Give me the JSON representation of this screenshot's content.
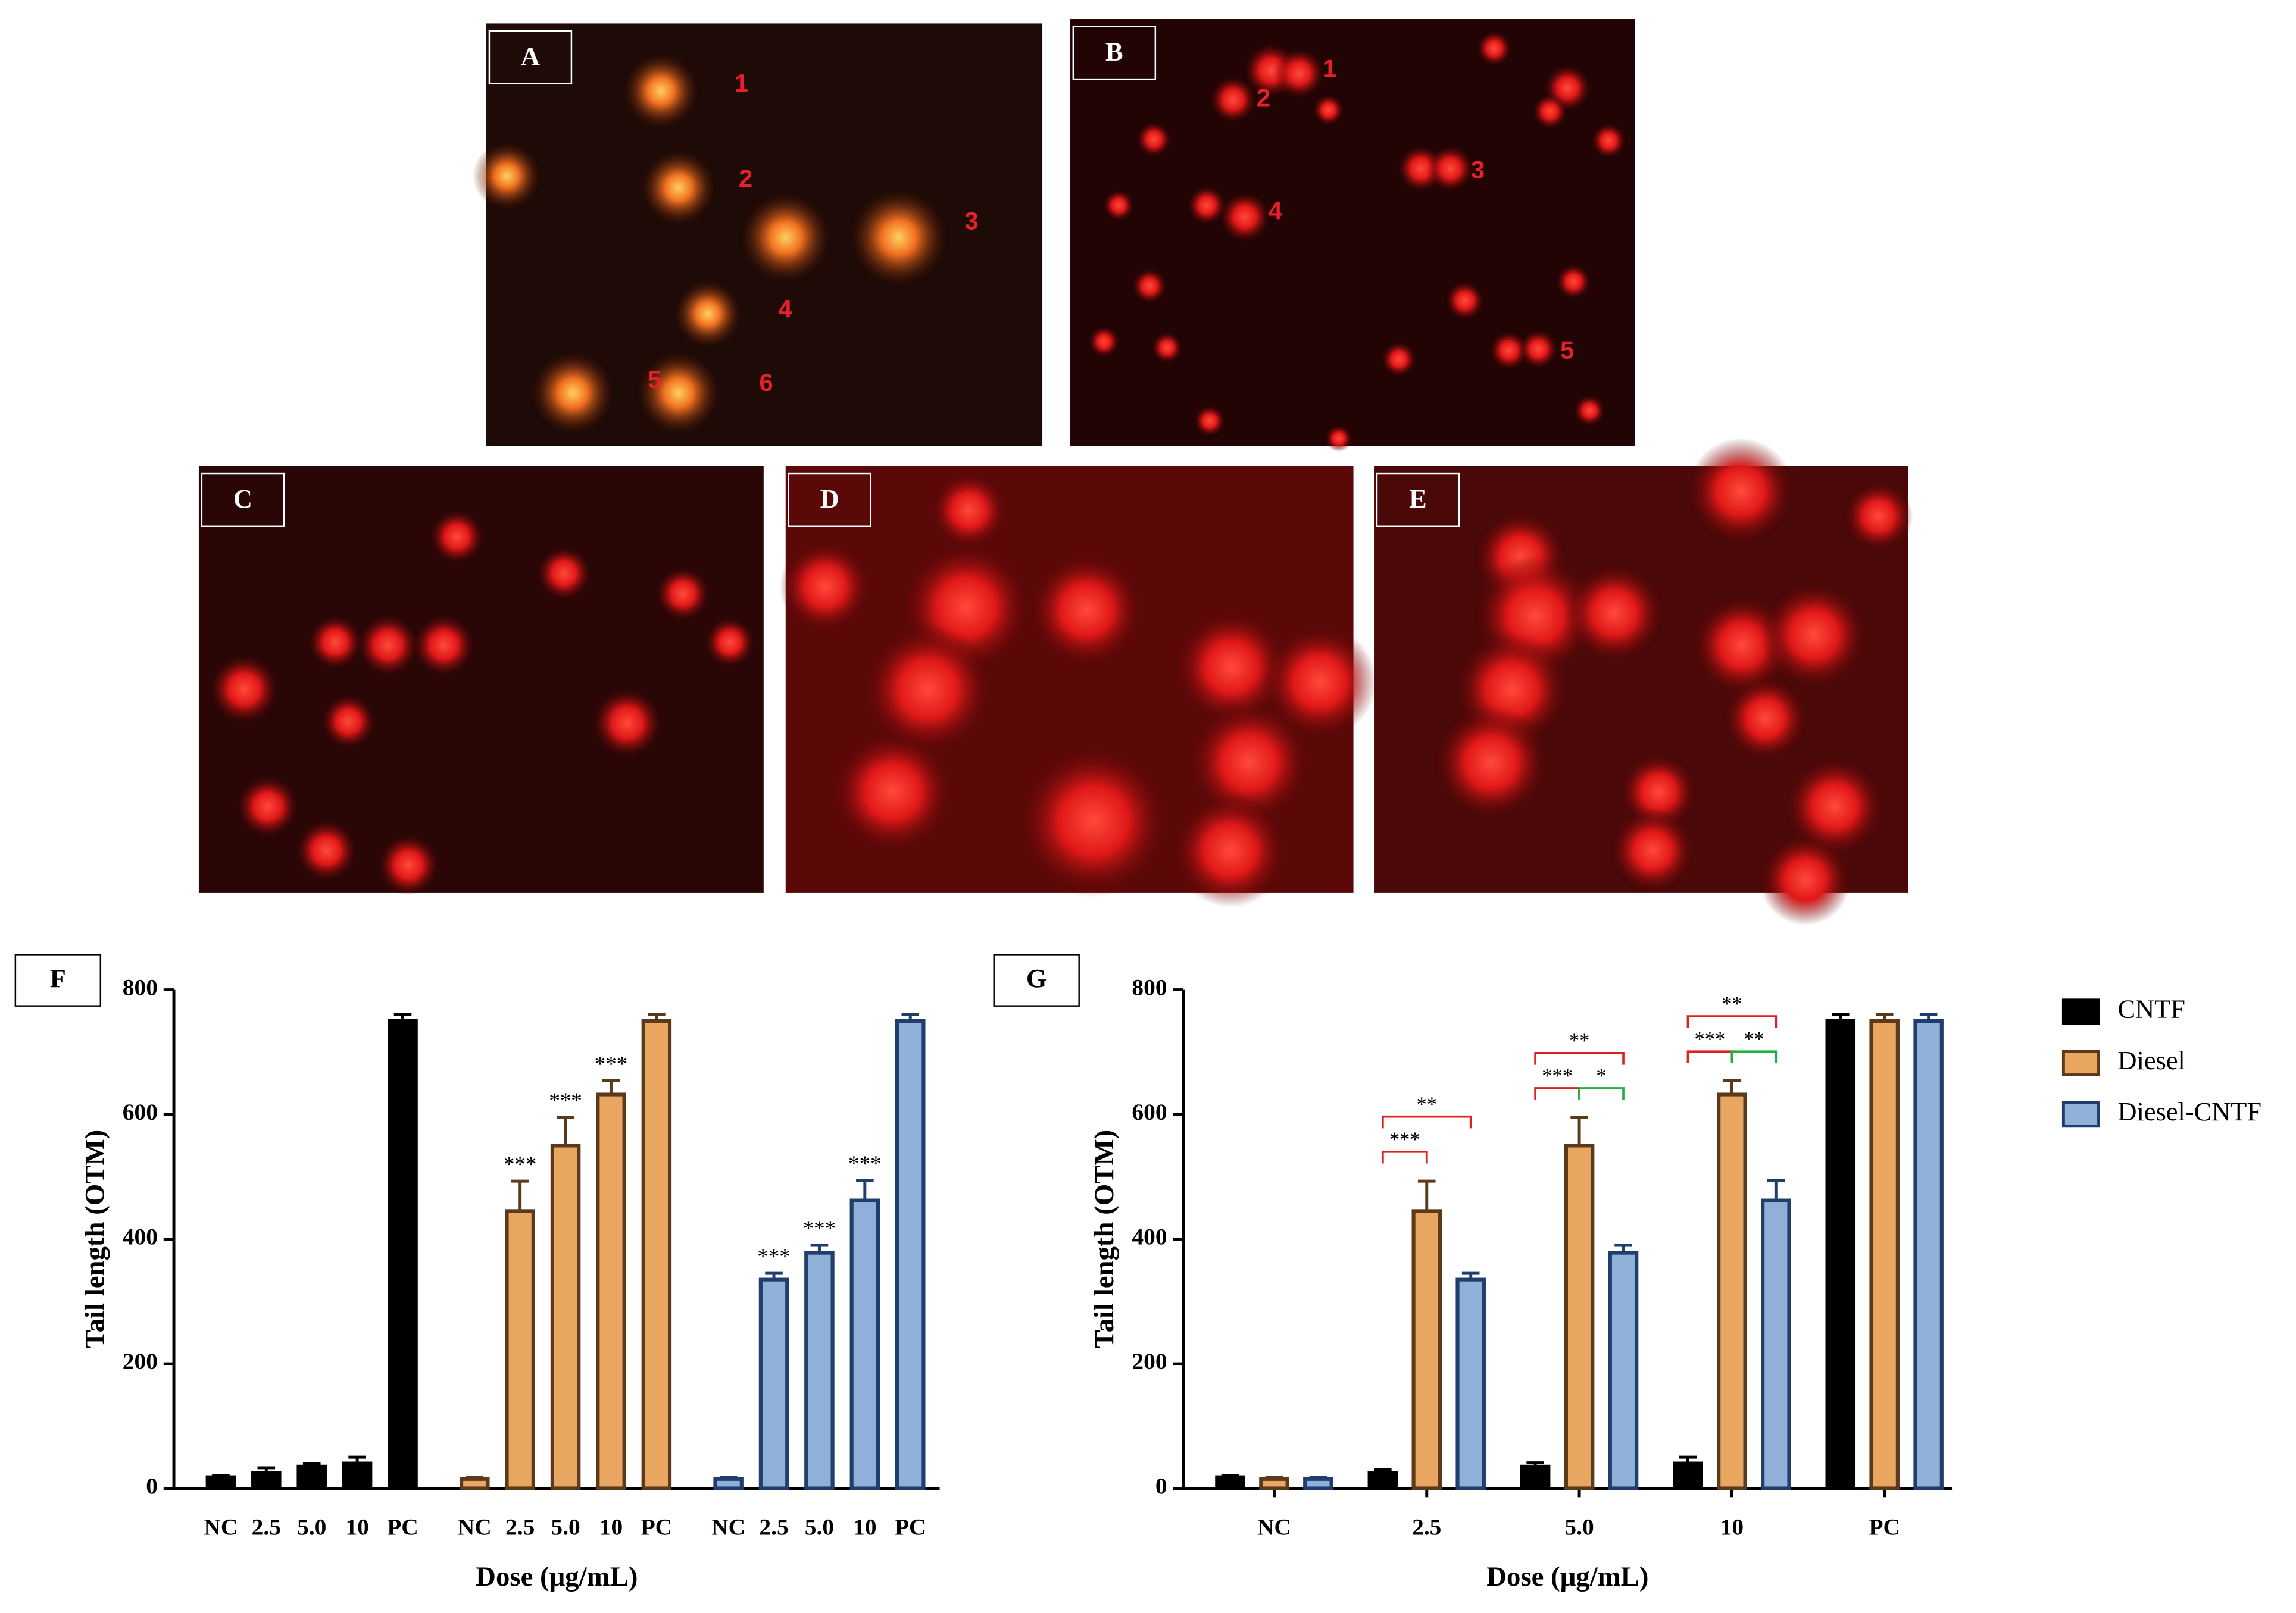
{
  "panels": [
    {
      "label": "A",
      "cell_labels": [
        "1",
        "2",
        "3",
        "4",
        "5",
        "6"
      ]
    },
    {
      "label": "B",
      "cell_labels": [
        "1",
        "2",
        "3",
        "4",
        "5"
      ]
    },
    {
      "label": "C"
    },
    {
      "label": "D"
    },
    {
      "label": "E"
    }
  ],
  "chart_data": [
    {
      "type": "bar",
      "layout": "separate",
      "panel_label": "F",
      "y_label": "Tail length (OTM)",
      "x_label": "Dose (μg/mL)",
      "categories": [
        "NC",
        "2.5",
        "5.0",
        "10",
        "PC"
      ],
      "ylim": [
        0,
        800
      ],
      "yticks": [
        0,
        200,
        400,
        600,
        800
      ],
      "series": [
        {
          "color": "#000000",
          "values": [
            18,
            25,
            35,
            40,
            750
          ],
          "errors": [
            3,
            8,
            5,
            10,
            10
          ],
          "significance": [
            null,
            null,
            null,
            null,
            null
          ]
        },
        {
          "color": "#e8a660",
          "values": [
            15,
            445,
            550,
            632,
            750
          ],
          "errors": [
            3,
            48,
            45,
            22,
            10
          ],
          "significance": [
            null,
            "***",
            "***",
            "***",
            null
          ]
        },
        {
          "color": "#8fb1d9",
          "values": [
            15,
            335,
            378,
            462,
            750
          ],
          "errors": [
            3,
            10,
            12,
            32,
            10
          ],
          "significance": [
            null,
            "***",
            "***",
            "***",
            null
          ]
        }
      ]
    },
    {
      "type": "bar",
      "layout": "grouped",
      "panel_label": "G",
      "y_label": "Tail length (OTM)",
      "x_label": "Dose (μg/mL)",
      "categories": [
        "NC",
        "2.5",
        "5.0",
        "10",
        "PC"
      ],
      "ylim": [
        0,
        800
      ],
      "yticks": [
        0,
        200,
        400,
        600,
        800
      ],
      "legend": "right",
      "series": [
        {
          "name": "CNTF",
          "color": "#000000",
          "values": [
            18,
            25,
            35,
            40,
            750
          ],
          "errors": [
            3,
            5,
            6,
            10,
            10
          ]
        },
        {
          "name": "Diesel",
          "color": "#e8a660",
          "values": [
            15,
            445,
            550,
            632,
            750
          ],
          "errors": [
            3,
            48,
            45,
            22,
            10
          ]
        },
        {
          "name": "Diesel-CNTF",
          "color": "#8fb1d9",
          "values": [
            15,
            335,
            378,
            462,
            750
          ],
          "errors": [
            3,
            10,
            12,
            32,
            10
          ]
        }
      ],
      "comparisons": [
        {
          "category": 1,
          "from": 0,
          "to": 1,
          "label": "***",
          "color": "#e02020"
        },
        {
          "category": 1,
          "from": 0,
          "to": 2,
          "label": "**",
          "color": "#e02020"
        },
        {
          "category": 2,
          "from": 0,
          "to": 1,
          "label": "***",
          "color": "#e02020"
        },
        {
          "category": 2,
          "from": 1,
          "to": 2,
          "label": "*",
          "color": "#20b040"
        },
        {
          "category": 2,
          "from": 0,
          "to": 2,
          "label": "**",
          "color": "#e02020"
        },
        {
          "category": 3,
          "from": 0,
          "to": 1,
          "label": "***",
          "color": "#e02020"
        },
        {
          "category": 3,
          "from": 1,
          "to": 2,
          "label": "**",
          "color": "#20b040"
        },
        {
          "category": 3,
          "from": 0,
          "to": 2,
          "label": "**",
          "color": "#e02020"
        }
      ]
    }
  ]
}
